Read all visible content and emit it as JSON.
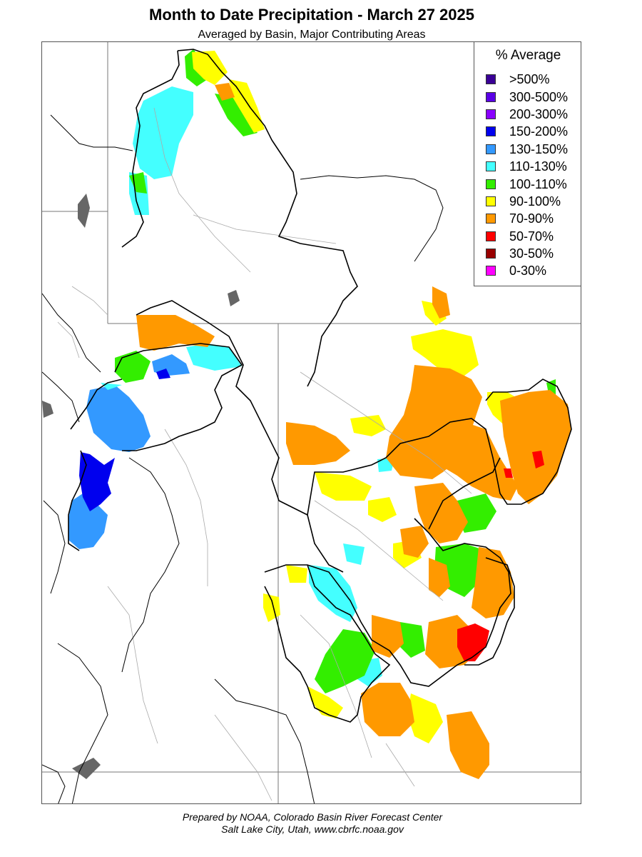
{
  "title": "Month to Date Precipitation - March 27 2025",
  "subtitle": "Averaged by Basin, Major Contributing Areas",
  "legend": {
    "title": "% Average",
    "items": [
      {
        "label": ">500%",
        "color": "#3a0096"
      },
      {
        "label": "300-500%",
        "color": "#5a00e6"
      },
      {
        "label": "200-300%",
        "color": "#8a00ff"
      },
      {
        "label": "150-200%",
        "color": "#0000ee"
      },
      {
        "label": "130-150%",
        "color": "#3399ff"
      },
      {
        "label": "110-130%",
        "color": "#44ffff"
      },
      {
        "label": "100-110%",
        "color": "#33ee00"
      },
      {
        "label": "90-100%",
        "color": "#ffff00"
      },
      {
        "label": "70-90%",
        "color": "#ff9900"
      },
      {
        "label": "50-70%",
        "color": "#ff0000"
      },
      {
        "label": "30-50%",
        "color": "#990000"
      },
      {
        "label": "0-30%",
        "color": "#ff00ff"
      }
    ]
  },
  "footer": {
    "line1": "Prepared by NOAA, Colorado Basin River Forecast Center",
    "line2": "Salt Lake City, Utah, www.cbrfc.noaa.gov"
  }
}
